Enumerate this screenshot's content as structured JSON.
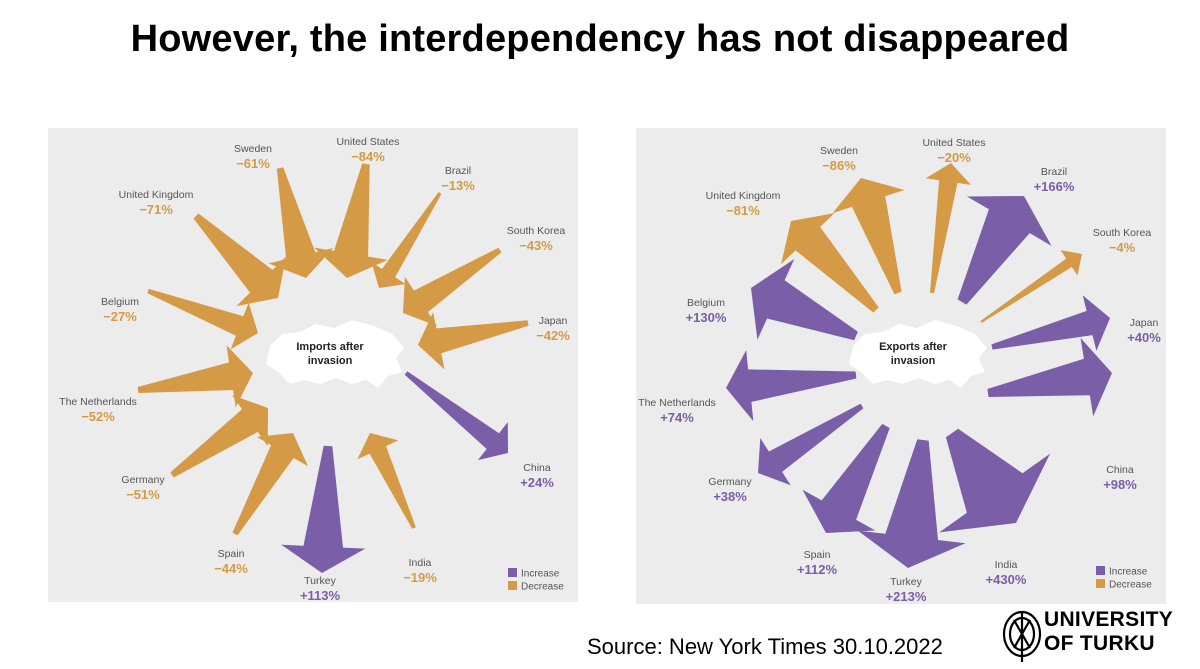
{
  "slide": {
    "title": "However, the interdependency has not disappeared",
    "source": "Source: New York Times 30.10.2022",
    "university_line1": "UNIVERSITY",
    "university_line2": "OF TURKU"
  },
  "colors": {
    "increase": "#7b5ea8",
    "decrease": "#d49a45",
    "panel": "#ececec",
    "map": "#ffffff"
  },
  "chart_data": [
    {
      "type": "radial-arrow",
      "title": "Imports after invasion",
      "center_label": [
        "Imports after",
        "invasion"
      ],
      "legend": {
        "increase": "Increase",
        "decrease": "Decrease"
      },
      "unit": "percent change",
      "points": [
        {
          "country": "Sweden",
          "label": "−61%",
          "value": -61
        },
        {
          "country": "United States",
          "label": "−84%",
          "value": -84
        },
        {
          "country": "Brazil",
          "label": "−13%",
          "value": -13
        },
        {
          "country": "South Korea",
          "label": "−43%",
          "value": -43
        },
        {
          "country": "Japan",
          "label": "−42%",
          "value": -42
        },
        {
          "country": "China",
          "label": "+24%",
          "value": 24
        },
        {
          "country": "India",
          "label": "−19%",
          "value": -19
        },
        {
          "country": "Turkey",
          "label": "+113%",
          "value": 113
        },
        {
          "country": "Spain",
          "label": "−44%",
          "value": -44
        },
        {
          "country": "Germany",
          "label": "−51%",
          "value": -51
        },
        {
          "country": "The Netherlands",
          "label": "−52%",
          "value": -52
        },
        {
          "country": "Belgium",
          "label": "−27%",
          "value": -27
        },
        {
          "country": "United Kingdom",
          "label": "−71%",
          "value": -71
        }
      ]
    },
    {
      "type": "radial-arrow",
      "title": "Exports after invasion",
      "center_label": [
        "Exports after",
        "invasion"
      ],
      "legend": {
        "increase": "Increase",
        "decrease": "Decrease"
      },
      "unit": "percent change",
      "points": [
        {
          "country": "Sweden",
          "label": "−86%",
          "value": -86
        },
        {
          "country": "United States",
          "label": "−20%",
          "value": -20
        },
        {
          "country": "Brazil",
          "label": "+166%",
          "value": 166
        },
        {
          "country": "South Korea",
          "label": "−4%",
          "value": -4
        },
        {
          "country": "Japan",
          "label": "+40%",
          "value": 40
        },
        {
          "country": "China",
          "label": "+98%",
          "value": 98
        },
        {
          "country": "India",
          "label": "+430%",
          "value": 430
        },
        {
          "country": "Turkey",
          "label": "+213%",
          "value": 213
        },
        {
          "country": "Spain",
          "label": "+112%",
          "value": 112
        },
        {
          "country": "Germany",
          "label": "+38%",
          "value": 38
        },
        {
          "country": "The Netherlands",
          "label": "+74%",
          "value": 74
        },
        {
          "country": "Belgium",
          "label": "+130%",
          "value": 130
        },
        {
          "country": "United Kingdom",
          "label": "−81%",
          "value": -81
        }
      ]
    }
  ]
}
